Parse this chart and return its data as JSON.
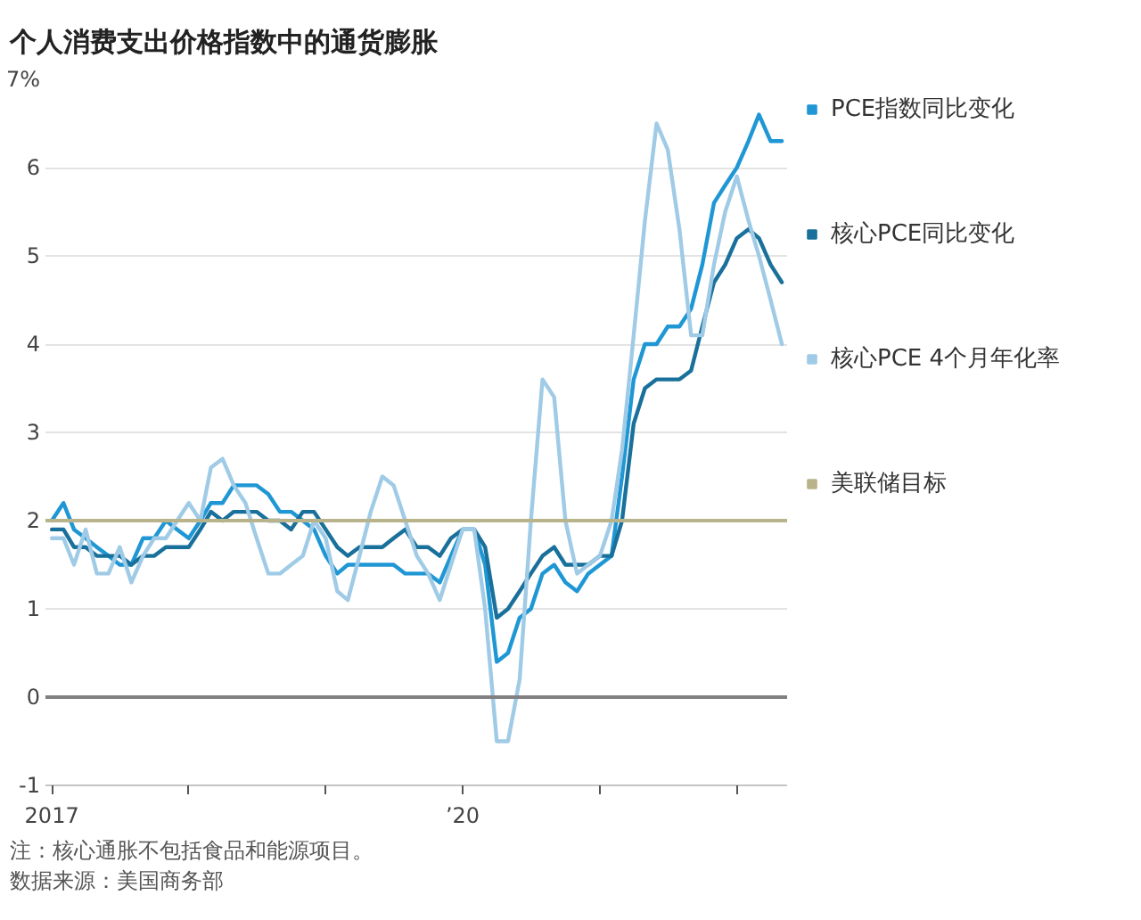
{
  "chart_data": {
    "type": "line",
    "title": "个人消费支出价格指数中的通货膨胀",
    "annotations": [
      "注：核心通胀不包括食品和能源项目。",
      "数据来源：美国商务部"
    ],
    "x": [
      "2017-01",
      "2017-02",
      "2017-03",
      "2017-04",
      "2017-05",
      "2017-06",
      "2017-07",
      "2017-08",
      "2017-09",
      "2017-10",
      "2017-11",
      "2017-12",
      "2018-01",
      "2018-02",
      "2018-03",
      "2018-04",
      "2018-05",
      "2018-06",
      "2018-07",
      "2018-08",
      "2018-09",
      "2018-10",
      "2018-11",
      "2018-12",
      "2019-01",
      "2019-02",
      "2019-03",
      "2019-04",
      "2019-05",
      "2019-06",
      "2019-07",
      "2019-08",
      "2019-09",
      "2019-10",
      "2019-11",
      "2019-12",
      "2020-01",
      "2020-02",
      "2020-03",
      "2020-04",
      "2020-05",
      "2020-06",
      "2020-07",
      "2020-08",
      "2020-09",
      "2020-10",
      "2020-11",
      "2020-12",
      "2021-01",
      "2021-02",
      "2021-03",
      "2021-04",
      "2021-05",
      "2021-06",
      "2021-07",
      "2021-08",
      "2021-09",
      "2021-10",
      "2021-11",
      "2021-12",
      "2022-01",
      "2022-02",
      "2022-03",
      "2022-04",
      "2022-05"
    ],
    "series": [
      {
        "name": "PCE指数同比变化",
        "color": "#1f97d4",
        "values": [
          2.0,
          2.2,
          1.9,
          1.8,
          1.7,
          1.6,
          1.5,
          1.5,
          1.8,
          1.8,
          2.0,
          1.9,
          1.8,
          2.0,
          2.2,
          2.2,
          2.4,
          2.4,
          2.4,
          2.3,
          2.1,
          2.1,
          2.0,
          1.9,
          1.6,
          1.4,
          1.5,
          1.5,
          1.5,
          1.5,
          1.5,
          1.4,
          1.4,
          1.4,
          1.3,
          1.6,
          1.9,
          1.9,
          1.5,
          0.4,
          0.5,
          0.9,
          1.0,
          1.4,
          1.5,
          1.3,
          1.2,
          1.4,
          1.5,
          1.6,
          2.5,
          3.6,
          4.0,
          4.0,
          4.2,
          4.2,
          4.4,
          4.9,
          5.6,
          5.8,
          6.0,
          6.3,
          6.6,
          6.3,
          6.3
        ]
      },
      {
        "name": "核心PCE同比变化",
        "color": "#19709b",
        "values": [
          1.9,
          1.9,
          1.7,
          1.7,
          1.6,
          1.6,
          1.6,
          1.5,
          1.6,
          1.6,
          1.7,
          1.7,
          1.7,
          1.9,
          2.1,
          2.0,
          2.1,
          2.1,
          2.1,
          2.0,
          2.0,
          1.9,
          2.1,
          2.1,
          1.9,
          1.7,
          1.6,
          1.7,
          1.7,
          1.7,
          1.8,
          1.9,
          1.7,
          1.7,
          1.6,
          1.8,
          1.9,
          1.9,
          1.7,
          0.9,
          1.0,
          1.2,
          1.4,
          1.6,
          1.7,
          1.5,
          1.5,
          1.5,
          1.6,
          1.6,
          2.0,
          3.1,
          3.5,
          3.6,
          3.6,
          3.6,
          3.7,
          4.2,
          4.7,
          4.9,
          5.2,
          5.3,
          5.2,
          4.9,
          4.7
        ]
      },
      {
        "name": "核心PCE 4个月年化率",
        "color": "#a0cbe6",
        "values": [
          1.8,
          1.8,
          1.5,
          1.9,
          1.4,
          1.4,
          1.7,
          1.3,
          1.6,
          1.8,
          1.8,
          2.0,
          2.2,
          2.0,
          2.6,
          2.7,
          2.4,
          2.2,
          1.8,
          1.4,
          1.4,
          1.5,
          1.6,
          2.0,
          1.8,
          1.2,
          1.1,
          1.6,
          2.1,
          2.5,
          2.4,
          2.0,
          1.6,
          1.4,
          1.1,
          1.5,
          1.9,
          1.9,
          1.0,
          -0.5,
          -0.5,
          0.2,
          2.0,
          3.6,
          3.4,
          2.0,
          1.4,
          1.5,
          1.6,
          2.0,
          2.8,
          4.1,
          5.4,
          6.5,
          6.2,
          5.3,
          4.1,
          4.1,
          4.9,
          5.5,
          5.9,
          5.4,
          5.0,
          4.5,
          4.0
        ]
      }
    ],
    "ref_lines": [
      {
        "axis": "y",
        "value": 2,
        "label": "美联储目标",
        "color": "#b8b38a"
      },
      {
        "axis": "y",
        "value": 0,
        "color": "#808080"
      }
    ],
    "xlim": [
      "2016-12-15",
      "2022-05-15"
    ],
    "xticks": [
      {
        "value": "2017-01",
        "label": "2017"
      },
      {
        "value": "2018-01",
        "label": null
      },
      {
        "value": "2019-01",
        "label": null
      },
      {
        "value": "2020-01",
        "label": "’20"
      },
      {
        "value": "2021-01",
        "label": null
      },
      {
        "value": "2022-01",
        "label": null
      }
    ],
    "ylim": [
      -1,
      7
    ],
    "yticks": [
      -1,
      0,
      1,
      2,
      3,
      4,
      5,
      6,
      {
        "value": 7,
        "label": "7%"
      }
    ],
    "grid": "y",
    "legend": "right"
  }
}
